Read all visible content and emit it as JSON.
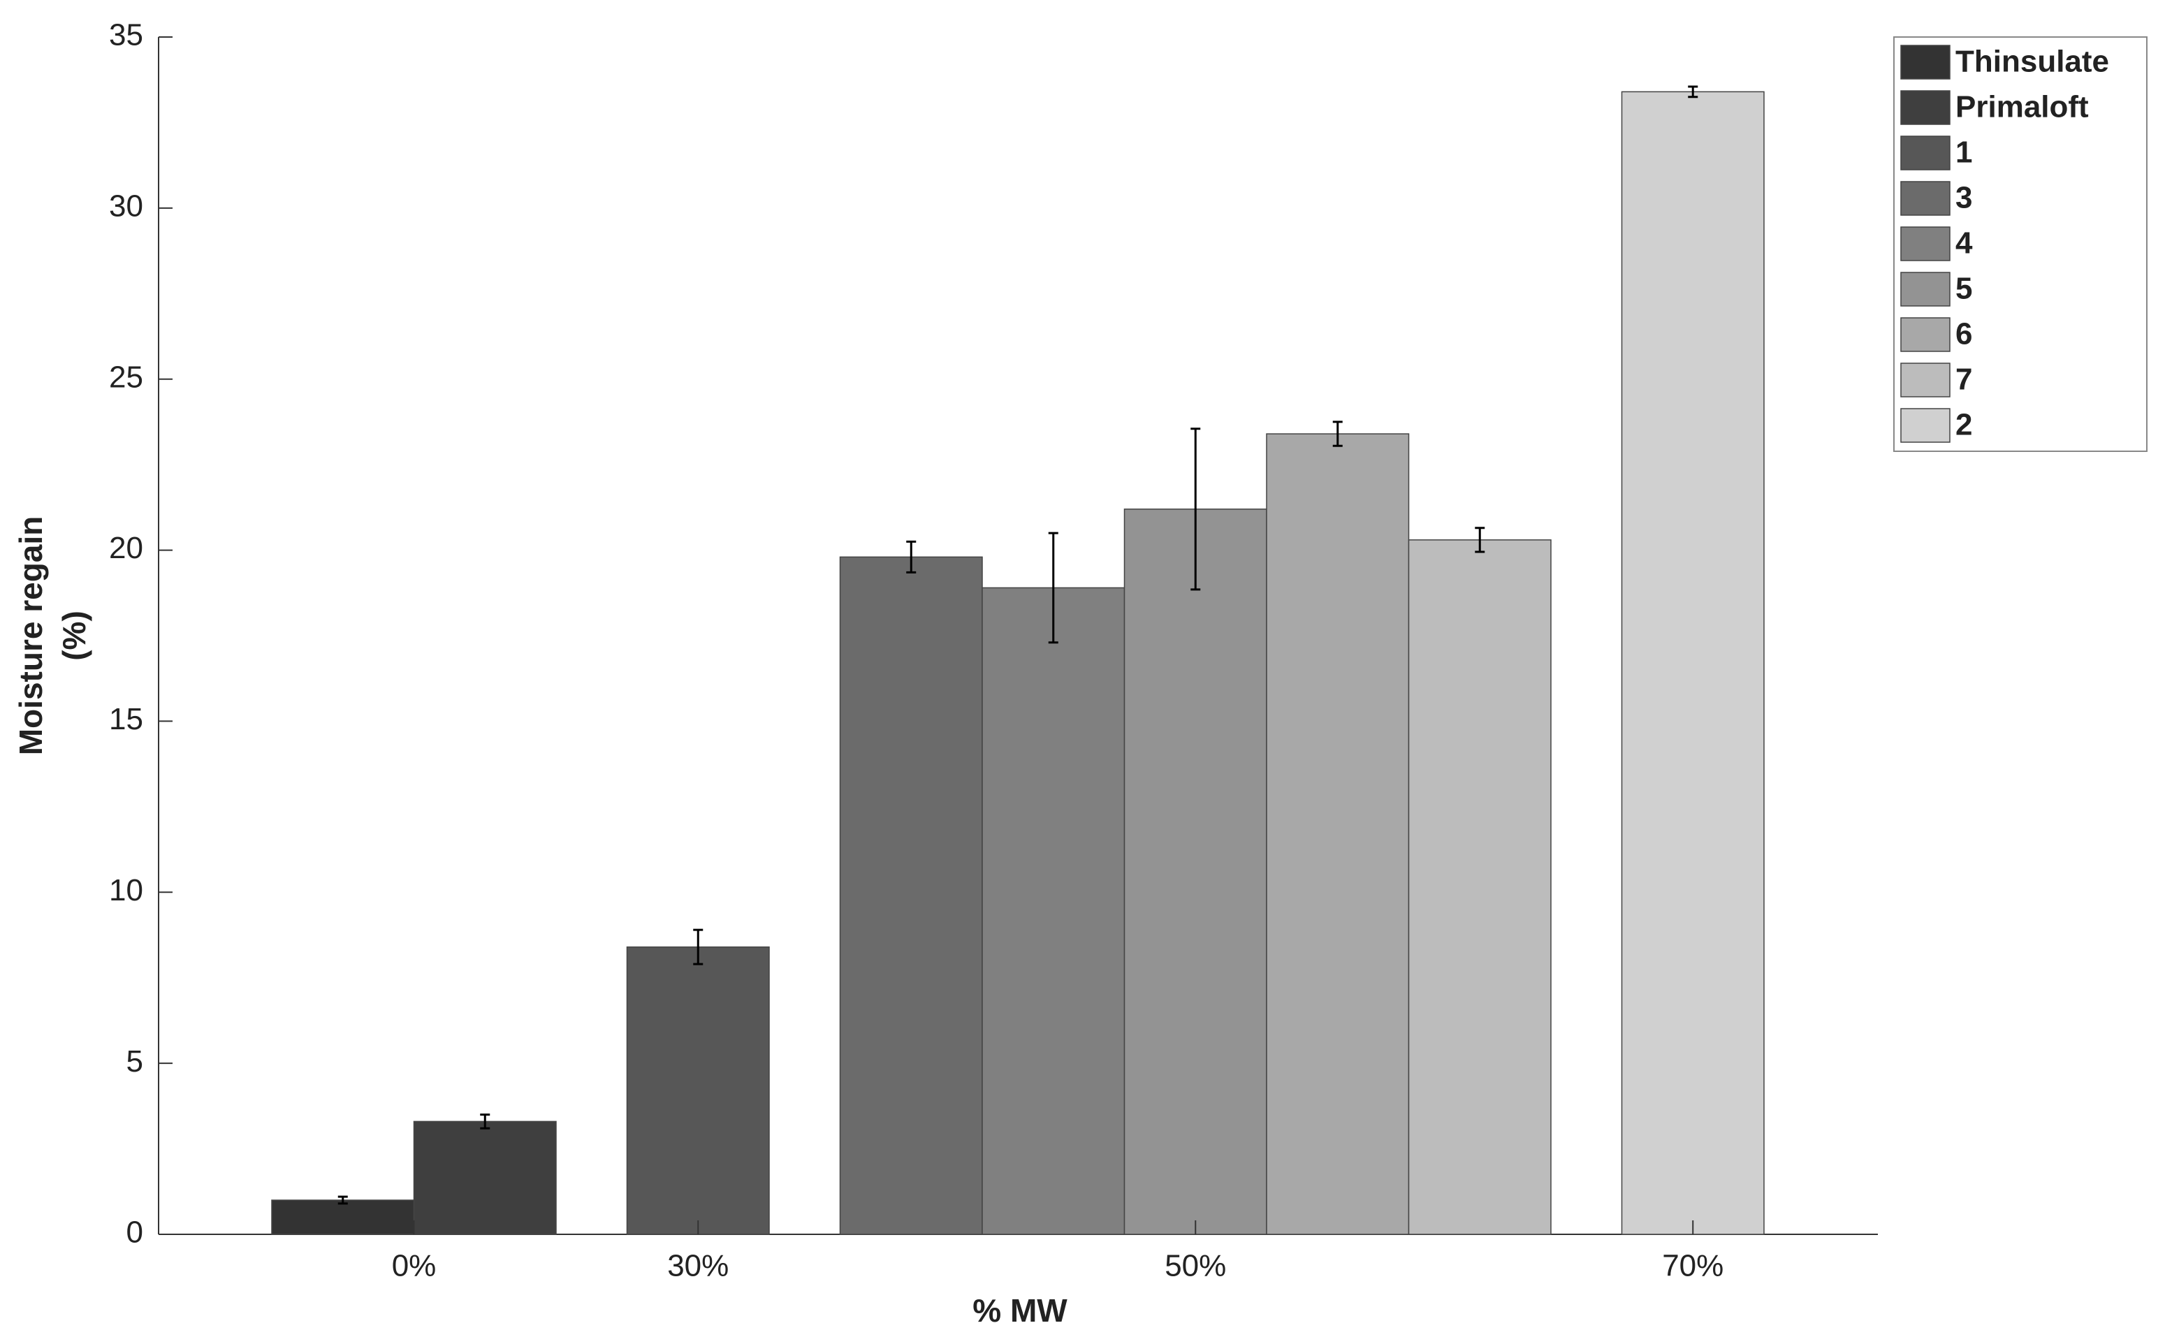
{
  "chart_data": {
    "type": "bar",
    "xlabel": "% MW",
    "ylabel": [
      "Moisture regain",
      "(%)"
    ],
    "categories": [
      "0%",
      "30%",
      "50%",
      "70%"
    ],
    "ylim": [
      0,
      35
    ],
    "yticks": [
      0,
      5,
      10,
      15,
      20,
      25,
      30,
      35
    ],
    "legend": "top-right outside",
    "series": [
      {
        "name": "Thinsulate",
        "color": "#333333",
        "values": [
          1.0,
          null,
          null,
          null
        ],
        "errors": [
          0.1,
          null,
          null,
          null
        ]
      },
      {
        "name": "Primaloft",
        "color": "#3f3f3f",
        "values": [
          3.3,
          null,
          null,
          null
        ],
        "errors": [
          0.2,
          null,
          null,
          null
        ]
      },
      {
        "name": "1",
        "color": "#575757",
        "values": [
          null,
          8.4,
          null,
          null
        ],
        "errors": [
          null,
          0.5,
          null,
          null
        ]
      },
      {
        "name": "3",
        "color": "#6b6b6b",
        "values": [
          null,
          null,
          19.8,
          null
        ],
        "errors": [
          null,
          null,
          0.45,
          null
        ]
      },
      {
        "name": "4",
        "color": "#808080",
        "values": [
          null,
          null,
          18.9,
          null
        ],
        "errors": [
          null,
          null,
          1.6,
          null
        ]
      },
      {
        "name": "5",
        "color": "#939393",
        "values": [
          null,
          null,
          21.2,
          null
        ],
        "errors": [
          null,
          null,
          2.35,
          null
        ]
      },
      {
        "name": "6",
        "color": "#a8a8a8",
        "values": [
          null,
          null,
          23.4,
          null
        ],
        "errors": [
          null,
          null,
          0.35,
          null
        ]
      },
      {
        "name": "7",
        "color": "#bcbcbc",
        "values": [
          null,
          null,
          20.3,
          null
        ],
        "errors": [
          null,
          null,
          0.35,
          null
        ]
      },
      {
        "name": "2",
        "color": "#d0d0d0",
        "values": [
          null,
          null,
          null,
          33.4
        ],
        "errors": [
          null,
          null,
          null,
          0.15
        ]
      }
    ]
  }
}
